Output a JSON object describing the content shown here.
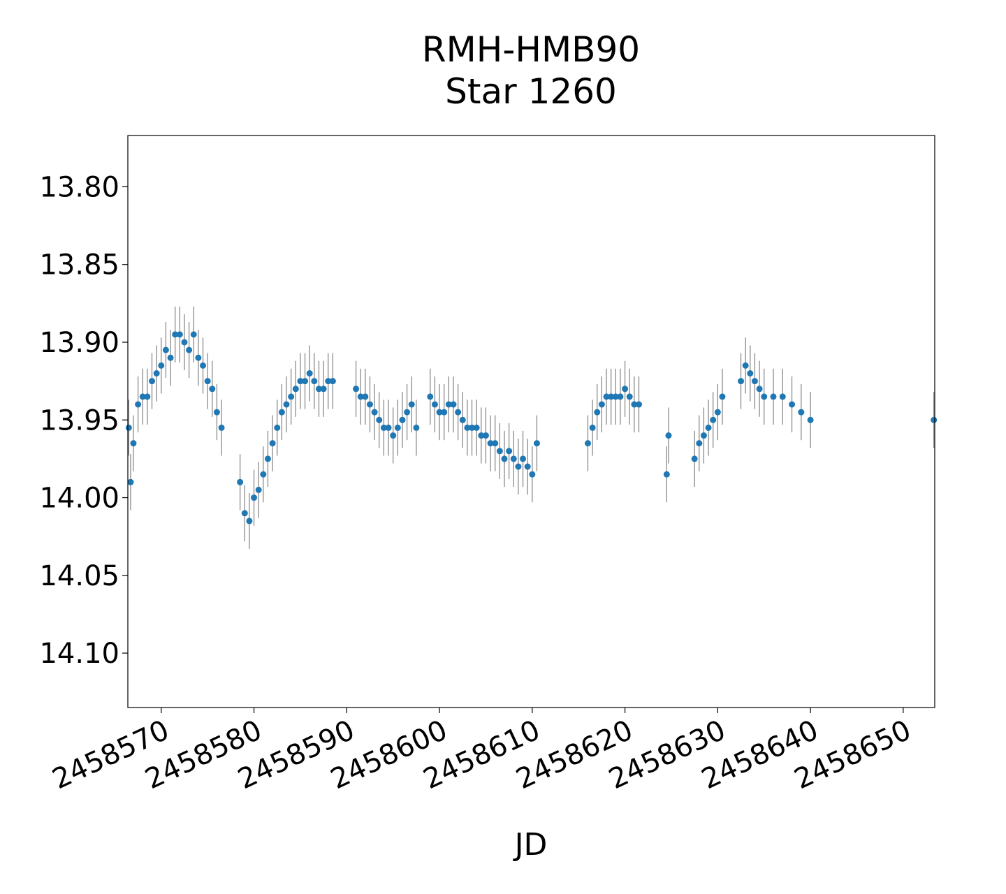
{
  "chart_data": {
    "type": "scatter",
    "title": [
      "RMH-HMB90",
      "Star 1260"
    ],
    "xlabel": "JD",
    "ylabel": "",
    "xlim": [
      2458566.4,
      2458653.4
    ],
    "ylim": [
      14.135,
      13.767
    ],
    "y_inverted": true,
    "xticks": [
      2458570,
      2458580,
      2458590,
      2458600,
      2458610,
      2458620,
      2458630,
      2458640,
      2458650
    ],
    "xtick_labels": [
      "2458570",
      "2458580",
      "2458590",
      "2458600",
      "2458610",
      "2458620",
      "2458630",
      "2458640",
      "2458650"
    ],
    "yticks": [
      13.8,
      13.85,
      13.9,
      13.95,
      14.0,
      14.05,
      14.1
    ],
    "ytick_labels": [
      "13.80",
      "13.85",
      "13.90",
      "13.95",
      "14.00",
      "14.05",
      "14.10"
    ],
    "grid": false,
    "marker_color": "#1f77b4",
    "errorbar_color": "#808080",
    "series": [
      {
        "x": [
          2458566.5,
          2458566.7,
          2458567.0,
          2458567.5,
          2458568.0,
          2458568.5,
          2458569.0,
          2458569.5,
          2458570.0,
          2458570.5,
          2458571.0,
          2458571.5,
          2458572.0,
          2458572.5,
          2458573.0,
          2458573.5,
          2458574.0,
          2458574.5,
          2458575.0,
          2458575.5,
          2458576.0,
          2458576.5,
          2458578.5,
          2458579.0,
          2458579.5,
          2458580.0,
          2458580.5,
          2458581.0,
          2458581.5,
          2458582.0,
          2458582.5,
          2458583.0,
          2458583.5,
          2458584.0,
          2458584.5,
          2458585.0,
          2458585.5,
          2458586.0,
          2458586.5,
          2458587.0,
          2458587.5,
          2458588.0,
          2458588.5,
          2458591.0,
          2458591.5,
          2458592.0,
          2458592.5,
          2458593.0,
          2458593.5,
          2458594.0,
          2458594.5,
          2458595.0,
          2458595.5,
          2458596.0,
          2458596.5,
          2458597.0,
          2458597.5,
          2458599.0,
          2458599.5,
          2458600.0,
          2458600.5,
          2458601.0,
          2458601.5,
          2458602.0,
          2458602.5,
          2458603.0,
          2458603.5,
          2458604.0,
          2458604.5,
          2458605.0,
          2458605.5,
          2458606.0,
          2458606.5,
          2458607.0,
          2458607.5,
          2458608.0,
          2458608.5,
          2458609.0,
          2458609.5,
          2458610.0,
          2458610.5,
          2458616.0,
          2458616.5,
          2458617.0,
          2458617.5,
          2458618.0,
          2458618.5,
          2458619.0,
          2458619.5,
          2458620.0,
          2458620.5,
          2458621.0,
          2458621.5,
          2458624.5,
          2458624.7,
          2458627.5,
          2458628.0,
          2458628.5,
          2458629.0,
          2458629.5,
          2458630.0,
          2458630.5,
          2458632.5,
          2458633.0,
          2458633.5,
          2458634.0,
          2458634.5,
          2458635.0,
          2458636.0,
          2458637.0,
          2458638.0,
          2458639.0,
          2458640.0,
          2458653.3
        ],
        "y": [
          13.955,
          13.99,
          13.965,
          13.94,
          13.935,
          13.935,
          13.925,
          13.92,
          13.915,
          13.905,
          13.91,
          13.895,
          13.895,
          13.9,
          13.905,
          13.895,
          13.91,
          13.915,
          13.925,
          13.93,
          13.945,
          13.955,
          13.99,
          14.01,
          14.015,
          14.0,
          13.995,
          13.985,
          13.975,
          13.965,
          13.955,
          13.945,
          13.94,
          13.935,
          13.93,
          13.925,
          13.925,
          13.92,
          13.925,
          13.93,
          13.93,
          13.925,
          13.925,
          13.93,
          13.935,
          13.935,
          13.94,
          13.945,
          13.95,
          13.955,
          13.955,
          13.96,
          13.955,
          13.95,
          13.945,
          13.94,
          13.955,
          13.935,
          13.94,
          13.945,
          13.945,
          13.94,
          13.94,
          13.945,
          13.95,
          13.955,
          13.955,
          13.955,
          13.96,
          13.96,
          13.965,
          13.965,
          13.97,
          13.975,
          13.97,
          13.975,
          13.98,
          13.975,
          13.98,
          13.985,
          13.965,
          13.965,
          13.955,
          13.945,
          13.94,
          13.935,
          13.935,
          13.935,
          13.935,
          13.93,
          13.935,
          13.94,
          13.94,
          13.985,
          13.96,
          13.975,
          13.965,
          13.96,
          13.955,
          13.95,
          13.945,
          13.935,
          13.925,
          13.915,
          13.92,
          13.925,
          13.93,
          13.935,
          13.935,
          13.935,
          13.94,
          13.945,
          13.95,
          13.95
        ]
      }
    ]
  }
}
